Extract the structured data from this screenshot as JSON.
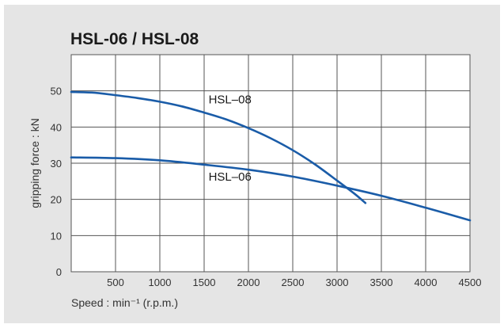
{
  "chart_data": {
    "type": "line",
    "title": "HSL-06 / HSL-08",
    "xlabel": "Speed : min⁻¹ (r.p.m.)",
    "ylabel": "gripping force : kN",
    "xlim": [
      0,
      4500
    ],
    "ylim": [
      0,
      60
    ],
    "x_ticks": [
      500,
      1000,
      1500,
      2000,
      2500,
      3000,
      3500,
      4000,
      4500
    ],
    "y_ticks": [
      0,
      10,
      20,
      30,
      40,
      50
    ],
    "grid": true,
    "legend": "none",
    "series": [
      {
        "name": "HSL-08",
        "color": "#1a5ca8",
        "x": [
          0,
          250,
          500,
          750,
          1000,
          1250,
          1500,
          1750,
          2000,
          2250,
          2500,
          2750,
          3000,
          3200,
          3320
        ],
        "y": [
          49.7,
          49.5,
          48.8,
          48.0,
          47.0,
          45.7,
          44.0,
          42.1,
          39.7,
          36.9,
          33.6,
          29.7,
          25.2,
          21.5,
          19.0
        ]
      },
      {
        "name": "HSL-06",
        "color": "#1a5ca8",
        "x": [
          0,
          500,
          1000,
          1500,
          2000,
          2500,
          3000,
          3500,
          4000,
          4500
        ],
        "y": [
          31.6,
          31.4,
          30.8,
          29.6,
          28.2,
          26.3,
          23.8,
          21.0,
          17.7,
          14.2
        ]
      }
    ],
    "annotations": [
      {
        "text": "HSL–08",
        "x": 1550,
        "y": 46.5
      },
      {
        "text": "HSL–06",
        "x": 1550,
        "y": 25.2
      }
    ]
  }
}
